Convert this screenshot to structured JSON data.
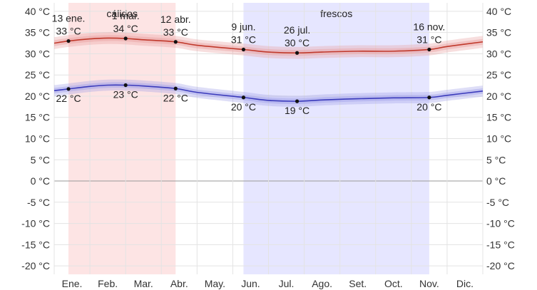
{
  "chart_data": {
    "type": "area",
    "title": "",
    "xlabel": "",
    "ylabel": "",
    "ylim": [
      -22,
      42
    ],
    "y_ticks": [
      40,
      35,
      30,
      25,
      20,
      15,
      10,
      5,
      0,
      -5,
      -10,
      -15,
      -20
    ],
    "y_unit": "°C",
    "months": [
      "Ene.",
      "Feb.",
      "Mar.",
      "Abr.",
      "May.",
      "Jun.",
      "Jul.",
      "Ago.",
      "Set.",
      "Oct.",
      "Nov.",
      "Dic."
    ],
    "grid": true,
    "seasons": [
      {
        "label": "cálidos",
        "start_month": 0.4,
        "end_month": 3.4,
        "color": "#fde4e4"
      },
      {
        "label": "frescos",
        "start_month": 5.3,
        "end_month": 10.5,
        "color": "#e6e6ff"
      }
    ],
    "series": [
      {
        "color": "#c0392b",
        "band_color": "#e8a0a0",
        "x_month": [
          0.0,
          0.4,
          1.0,
          1.5,
          2.0,
          2.5,
          3.4,
          4.0,
          5.3,
          6.0,
          6.8,
          7.5,
          8.5,
          9.5,
          10.5,
          11.0,
          12.0
        ],
        "values": [
          32.5,
          33.0,
          33.5,
          33.7,
          33.6,
          33.3,
          32.8,
          32.0,
          31.0,
          30.4,
          30.2,
          30.4,
          30.6,
          30.6,
          31.0,
          31.7,
          32.8
        ],
        "band": 1.4
      },
      {
        "color": "#3b3bbb",
        "band_color": "#a0a0e8",
        "x_month": [
          0.0,
          0.4,
          1.0,
          1.5,
          2.0,
          2.5,
          3.4,
          4.0,
          5.3,
          6.0,
          6.8,
          7.5,
          8.5,
          9.5,
          10.5,
          11.0,
          12.0
        ],
        "values": [
          21.3,
          21.7,
          22.3,
          22.6,
          22.6,
          22.4,
          21.8,
          20.9,
          19.7,
          19.0,
          18.8,
          19.1,
          19.4,
          19.6,
          19.7,
          20.2,
          21.2
        ],
        "band": 1.3
      }
    ],
    "annotations": [
      {
        "x_month": 0.4,
        "value": 33.0,
        "date": "13 ene.",
        "label": "33 °C",
        "pos": "above"
      },
      {
        "x_month": 2.0,
        "value": 33.6,
        "date": "1 mar.",
        "label": "34 °C",
        "pos": "above"
      },
      {
        "x_month": 3.4,
        "value": 32.8,
        "date": "12 abr.",
        "label": "33 °C",
        "pos": "above"
      },
      {
        "x_month": 5.3,
        "value": 31.0,
        "date": "9 jun.",
        "label": "31 °C",
        "pos": "above"
      },
      {
        "x_month": 6.8,
        "value": 30.2,
        "date": "26 jul.",
        "label": "30 °C",
        "pos": "above"
      },
      {
        "x_month": 10.5,
        "value": 31.0,
        "date": "16 nov.",
        "label": "31 °C",
        "pos": "above"
      },
      {
        "x_month": 0.4,
        "value": 21.7,
        "date": "",
        "label": "22 °C",
        "pos": "below"
      },
      {
        "x_month": 2.0,
        "value": 22.6,
        "date": "",
        "label": "23 °C",
        "pos": "below"
      },
      {
        "x_month": 3.4,
        "value": 21.8,
        "date": "",
        "label": "22 °C",
        "pos": "below"
      },
      {
        "x_month": 5.3,
        "value": 19.7,
        "date": "",
        "label": "20 °C",
        "pos": "below"
      },
      {
        "x_month": 6.8,
        "value": 18.8,
        "date": "",
        "label": "19 °C",
        "pos": "below"
      },
      {
        "x_month": 10.5,
        "value": 19.7,
        "date": "",
        "label": "20 °C",
        "pos": "below"
      }
    ]
  }
}
